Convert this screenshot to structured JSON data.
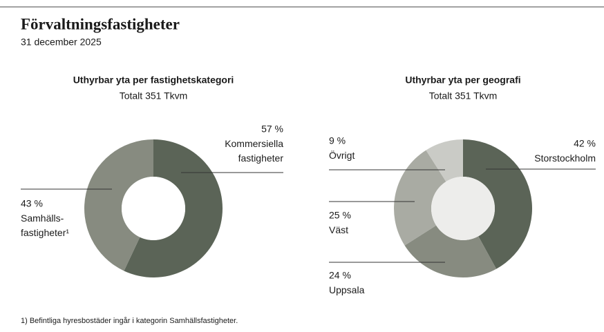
{
  "header": {
    "title": "Förvaltningsfastigheter",
    "subtitle": "31 december 2025"
  },
  "chart_data": [
    {
      "type": "pie",
      "donut": true,
      "title": "Uthyrbar yta per fastighetskategori",
      "subtitle": "Totalt 351 Tkvm",
      "categories": [
        "Kommersiella fastigheter",
        "Samhälls- fastigheter¹"
      ],
      "values": [
        57,
        43
      ],
      "value_labels": [
        "57 %",
        "43 %"
      ],
      "colors": [
        "#5b6457",
        "#878b80"
      ],
      "hole_color": "#ffffff"
    },
    {
      "type": "pie",
      "donut": true,
      "title": "Uthyrbar yta per geografi",
      "subtitle": "Totalt 351 Tkvm",
      "categories": [
        "Storstockholm",
        "Uppsala",
        "Väst",
        "Övrigt"
      ],
      "values": [
        42,
        24,
        25,
        9
      ],
      "value_labels": [
        "42 %",
        "24 %",
        "25 %",
        "9 %"
      ],
      "colors": [
        "#5b6457",
        "#878b80",
        "#a9aba3",
        "#cacbc6"
      ],
      "hole_color": "#ededeb"
    }
  ],
  "footnote": "1) Befintliga hyresbostäder ingår i kategorin Samhällsfastigheter."
}
